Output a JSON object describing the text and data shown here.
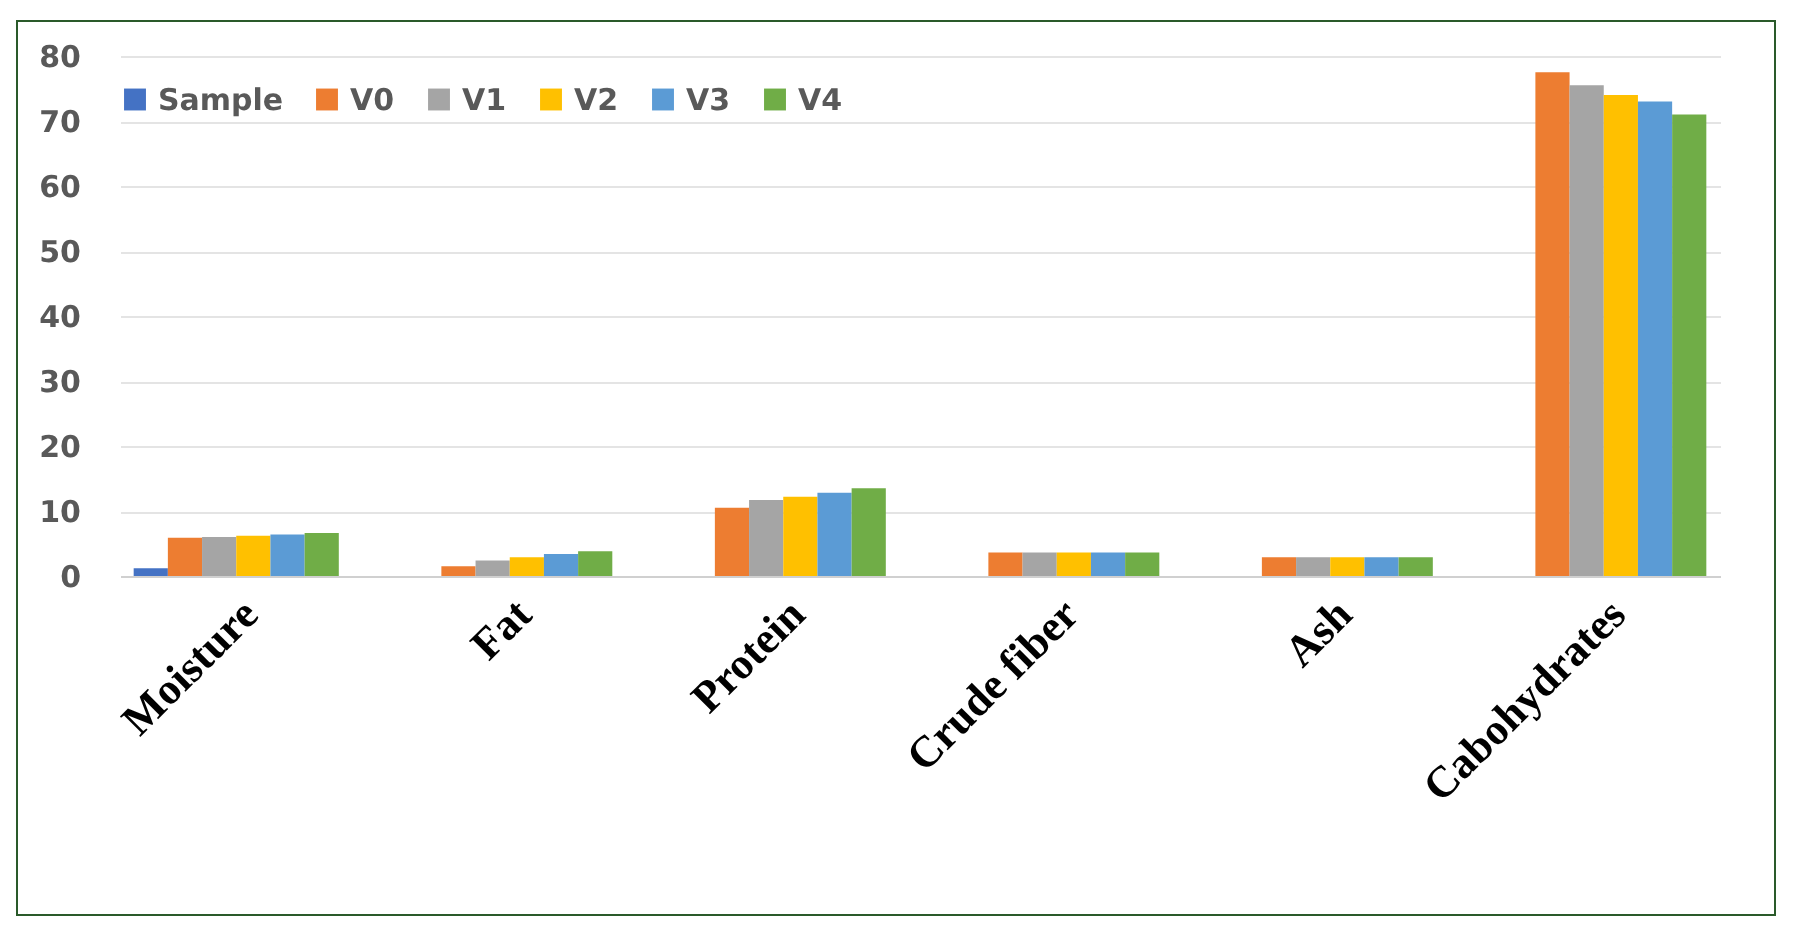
{
  "chart_data": {
    "type": "bar",
    "categories": [
      "Moisture",
      "Fat",
      "Protein",
      "Crude fiber",
      "Ash",
      "Cabohydrates"
    ],
    "series": [
      {
        "name": "Sample",
        "color": "#4472c4",
        "values": [
          1.2,
          null,
          null,
          null,
          null,
          null
        ]
      },
      {
        "name": "V0",
        "color": "#ed7d31",
        "values": [
          5.9,
          1.5,
          10.5,
          3.6,
          2.9,
          77.5
        ]
      },
      {
        "name": "V1",
        "color": "#a5a5a5",
        "values": [
          6.0,
          2.4,
          11.7,
          3.6,
          2.9,
          75.5
        ]
      },
      {
        "name": "V2",
        "color": "#ffc000",
        "values": [
          6.2,
          2.9,
          12.2,
          3.6,
          2.9,
          74
        ]
      },
      {
        "name": "V3",
        "color": "#5b9bd5",
        "values": [
          6.4,
          3.4,
          12.8,
          3.6,
          2.9,
          73
        ]
      },
      {
        "name": "V4",
        "color": "#70ad47",
        "values": [
          6.6,
          3.8,
          13.5,
          3.6,
          2.9,
          71
        ]
      }
    ],
    "ylim": [
      0,
      80
    ],
    "yticks": [
      0,
      10,
      20,
      30,
      40,
      50,
      60,
      70,
      80
    ],
    "grid": "y",
    "legend": "top"
  }
}
